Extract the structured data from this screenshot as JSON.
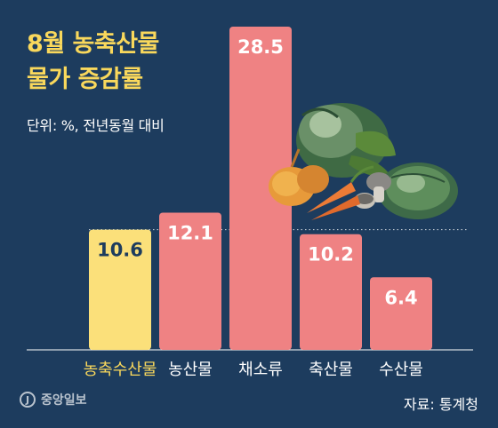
{
  "title": {
    "line1": "8월 농축산물",
    "line2": "물가 증감률"
  },
  "unit_text": "단위: %, 전년동월 대비",
  "source": "자료: 통계청",
  "publisher": "중앙일보",
  "colors": {
    "background": "#1d3c5e",
    "highlight_bar": "#fbe07a",
    "bar": "#ef8283",
    "highlight_label": "#f9d85c",
    "label": "#ffffff"
  },
  "chart_data": {
    "type": "bar",
    "title": "8월 농축산물 물가 증감률",
    "unit": "단위: %, 전년동월 대비",
    "categories": [
      "농축수산물",
      "농산물",
      "채소류",
      "축산물",
      "수산물"
    ],
    "values": [
      10.6,
      12.1,
      28.5,
      10.2,
      6.4
    ],
    "highlight_index": 0,
    "reference_line_value": 10.6,
    "grid": false,
    "ylim": [
      0,
      28.5
    ]
  },
  "illustration": "vegetables-illustration"
}
